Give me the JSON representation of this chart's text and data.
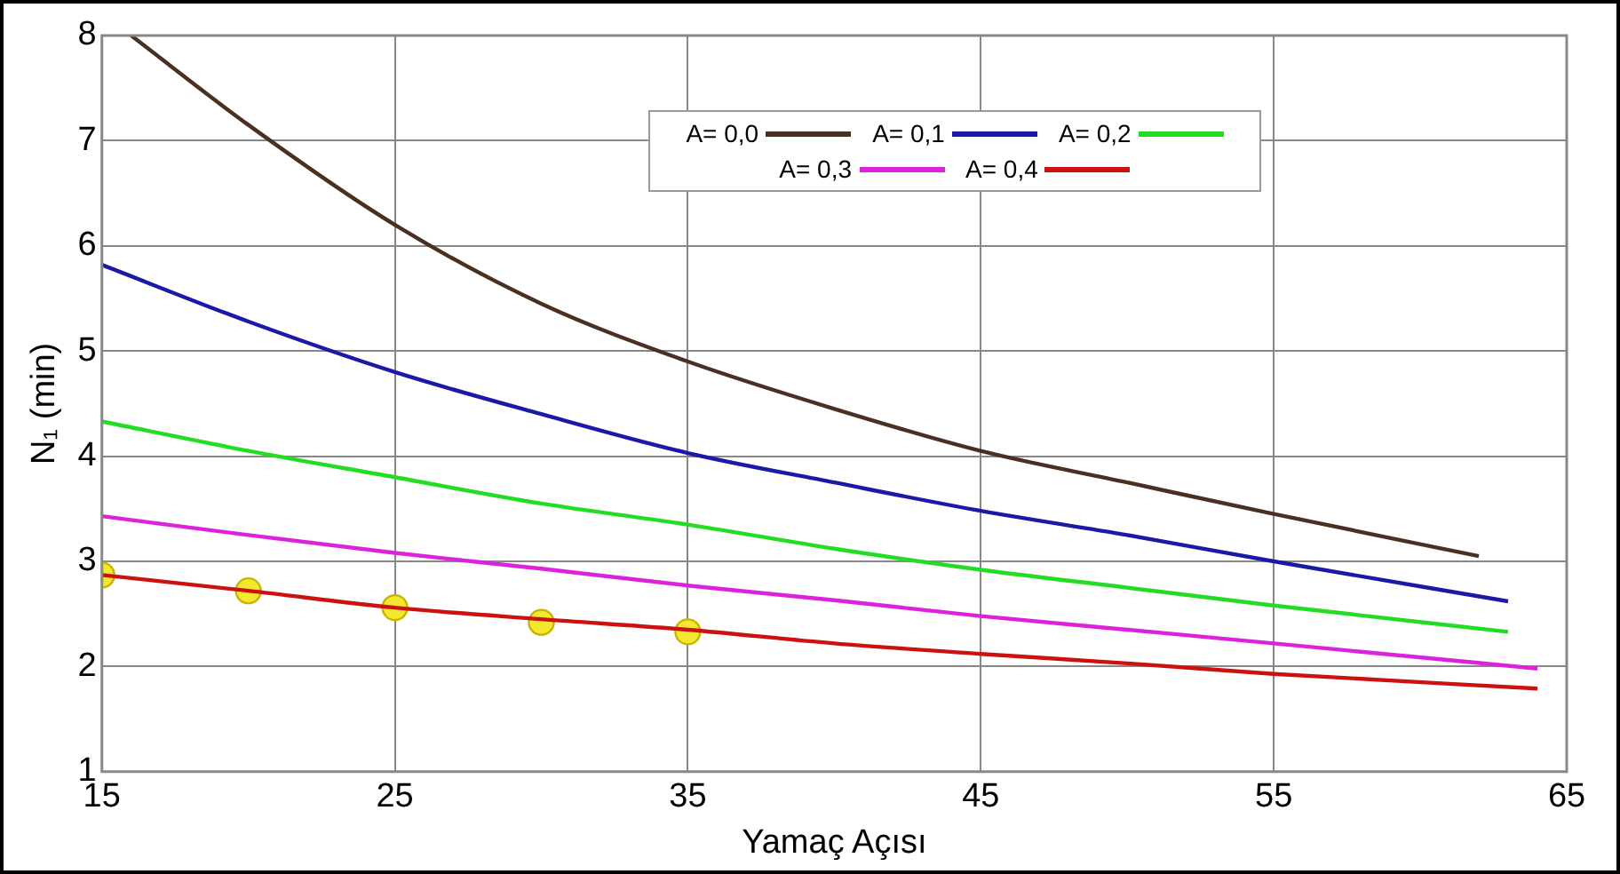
{
  "chart_data": {
    "type": "line",
    "xlabel": "Yamaç Açısı",
    "ylabel": "N₁ (min)",
    "xlim": [
      15,
      65
    ],
    "xticks": [
      15,
      25,
      35,
      45,
      55,
      65
    ],
    "ylim": [
      1,
      8
    ],
    "yticks": [
      1,
      2,
      3,
      4,
      5,
      6,
      7,
      8
    ],
    "grid": true,
    "legend": "top",
    "marker": "none",
    "line_style": "solid",
    "series": [
      {
        "name": "A= 0,0",
        "color": "#4a3020",
        "x": [
          16,
          20,
          25,
          30,
          35,
          40,
          45,
          50,
          55,
          62
        ],
        "values": [
          8,
          7.15,
          6.2,
          5.45,
          4.9,
          4.45,
          4.05,
          3.75,
          3.45,
          3.05
        ]
      },
      {
        "name": "A= 0,1",
        "color": "#1a1aa8",
        "x": [
          15,
          20,
          25,
          30,
          35,
          40,
          45,
          50,
          55,
          63
        ],
        "values": [
          5.82,
          5.28,
          4.8,
          4.4,
          4.03,
          3.75,
          3.48,
          3.25,
          3.0,
          2.62
        ]
      },
      {
        "name": "A= 0,2",
        "color": "#22dd22",
        "x": [
          15,
          20,
          25,
          30,
          35,
          40,
          45,
          50,
          55,
          63
        ],
        "values": [
          4.33,
          4.05,
          3.8,
          3.55,
          3.35,
          3.12,
          2.92,
          2.75,
          2.58,
          2.33
        ]
      },
      {
        "name": "A= 0,3",
        "color": "#dd22dd",
        "x": [
          15,
          20,
          25,
          30,
          35,
          40,
          45,
          50,
          55,
          64
        ],
        "values": [
          3.43,
          3.25,
          3.08,
          2.93,
          2.77,
          2.63,
          2.48,
          2.35,
          2.22,
          1.98
        ]
      },
      {
        "name": "A= 0,4",
        "color": "#cc1111",
        "x": [
          15,
          20,
          25,
          30,
          35,
          40,
          45,
          50,
          55,
          64
        ],
        "values": [
          2.87,
          2.72,
          2.56,
          2.45,
          2.35,
          2.22,
          2.12,
          2.03,
          1.93,
          1.79
        ]
      },
      {
        "type": "scatter",
        "color": "#f2e830",
        "marker": "circle",
        "x": [
          15,
          20,
          25,
          30,
          35
        ],
        "values": [
          2.87,
          2.72,
          2.56,
          2.42,
          2.33
        ]
      }
    ]
  }
}
